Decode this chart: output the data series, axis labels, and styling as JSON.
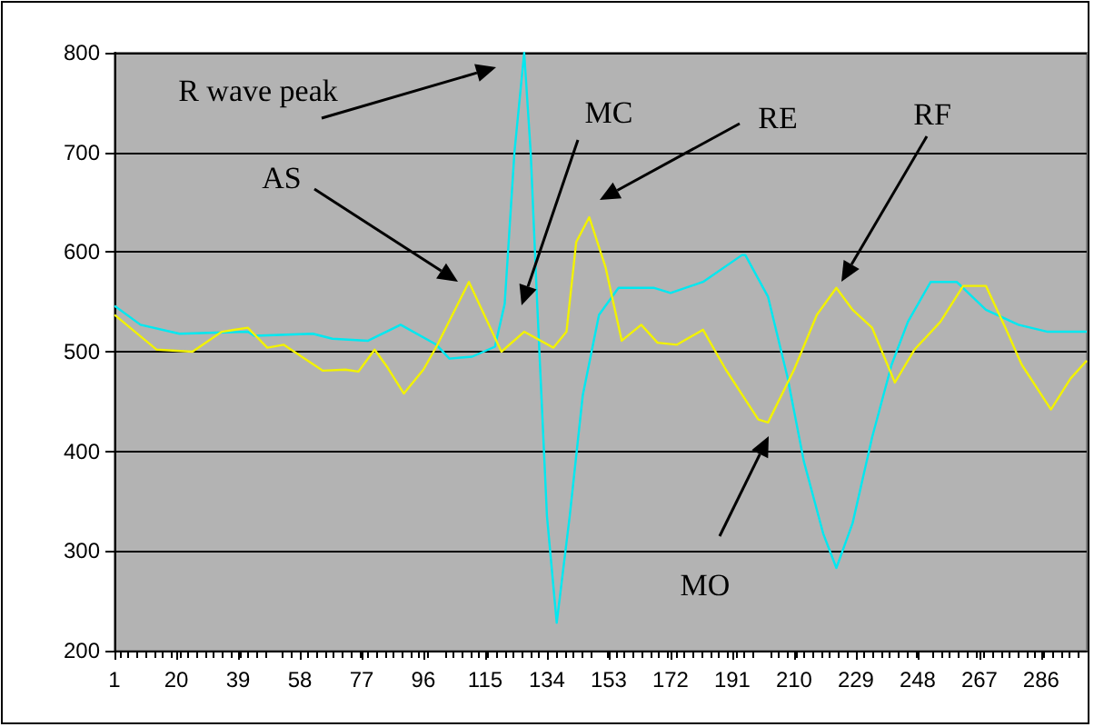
{
  "chart_data": {
    "type": "line",
    "grid": "y",
    "marker": "none",
    "line_style": "solid",
    "xlim": [
      1,
      300
    ],
    "xticks": [
      1,
      20,
      39,
      58,
      77,
      96,
      115,
      134,
      153,
      172,
      191,
      210,
      229,
      248,
      267,
      286
    ],
    "ylim": [
      200,
      800
    ],
    "yticks": [
      200,
      300,
      400,
      500,
      600,
      700,
      800
    ],
    "series": [
      {
        "color": "#00e8f0",
        "x": [
          1,
          9,
          21,
          42,
          44,
          62,
          68,
          79,
          89,
          100,
          104,
          111,
          118,
          121,
          124,
          127,
          129,
          131,
          134,
          137,
          141,
          145,
          150,
          156,
          167,
          172,
          182,
          194,
          195,
          202,
          208,
          213,
          219,
          223,
          228,
          234,
          240,
          245,
          252,
          260,
          269,
          279,
          288,
          300
        ],
        "values": [
          546,
          527,
          518,
          520,
          516,
          518,
          513,
          511,
          527,
          507,
          493,
          495,
          505,
          548,
          700,
          800,
          700,
          548,
          335,
          228,
          335,
          456,
          537,
          564,
          564,
          559,
          570,
          597,
          597,
          555,
          474,
          390,
          317,
          283,
          328,
          414,
          487,
          530,
          570,
          570,
          542,
          527,
          520,
          520
        ]
      },
      {
        "color": "#f2f200",
        "x": [
          1,
          14,
          25,
          34,
          42,
          48,
          53,
          65,
          72,
          76,
          81,
          85,
          90,
          96,
          100,
          110,
          120,
          127,
          136,
          140,
          143,
          147,
          152,
          157,
          163,
          168,
          174,
          182,
          189,
          199,
          202,
          210,
          217,
          223,
          228,
          234,
          241,
          247,
          255,
          262,
          269,
          275,
          280,
          289,
          295,
          300
        ],
        "values": [
          537,
          502,
          500,
          520,
          524,
          504,
          507,
          481,
          482,
          480,
          502,
          484,
          458,
          482,
          505,
          570,
          500,
          520,
          504,
          520,
          610,
          635,
          585,
          511,
          527,
          509,
          507,
          522,
          482,
          432,
          429,
          482,
          537,
          564,
          542,
          524,
          469,
          502,
          530,
          566,
          566,
          524,
          487,
          442,
          473,
          491
        ]
      }
    ],
    "annotations": [
      "R wave peak",
      "AS",
      "MC",
      "RE",
      "RF",
      "MO"
    ]
  }
}
